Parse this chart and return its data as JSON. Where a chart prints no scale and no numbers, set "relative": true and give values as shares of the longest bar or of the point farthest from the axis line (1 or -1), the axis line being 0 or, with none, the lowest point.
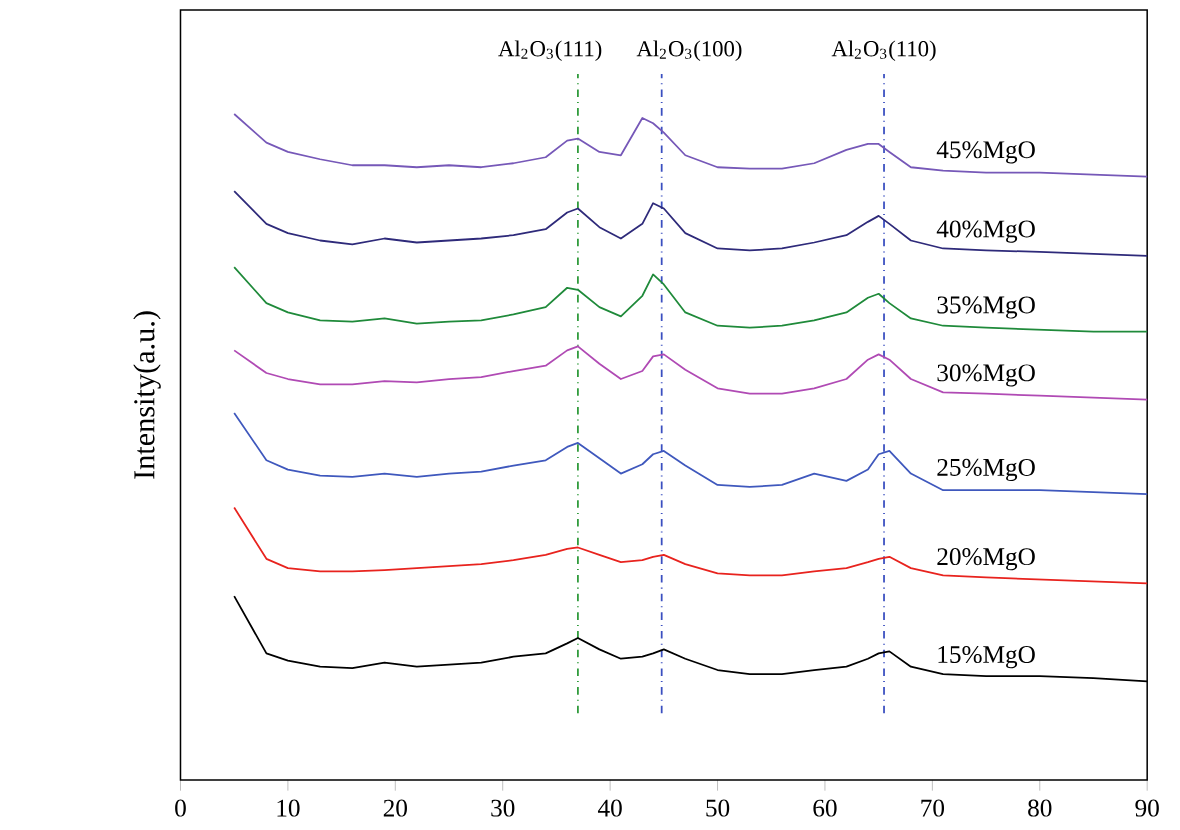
{
  "chart_data": {
    "type": "line",
    "ylabel": "Intensity(a.u.)",
    "relative": true,
    "marker": "none",
    "xlim": [
      0,
      90
    ],
    "xticks": [
      0,
      10,
      20,
      30,
      40,
      50,
      60,
      70,
      80,
      90
    ],
    "x": [
      5,
      8,
      10,
      13,
      16,
      19,
      22,
      25,
      28,
      31,
      34,
      36,
      37,
      39,
      41,
      43,
      44,
      45,
      47,
      50,
      53,
      56,
      59,
      62,
      64,
      65,
      66,
      68,
      71,
      75,
      80,
      85,
      90
    ],
    "series": [
      {
        "name": "15%MgO",
        "color": "#000000",
        "values": [
          0.276,
          0.19,
          0.179,
          0.17,
          0.168,
          0.176,
          0.17,
          0.173,
          0.176,
          0.185,
          0.19,
          0.205,
          0.213,
          0.196,
          0.182,
          0.185,
          0.19,
          0.196,
          0.182,
          0.165,
          0.159,
          0.159,
          0.165,
          0.17,
          0.182,
          0.19,
          0.193,
          0.17,
          0.159,
          0.156,
          0.156,
          0.153,
          0.148
        ]
      },
      {
        "name": "20%MgO",
        "color": "#e8231e",
        "values": [
          0.409,
          0.332,
          0.318,
          0.313,
          0.313,
          0.315,
          0.318,
          0.321,
          0.324,
          0.33,
          0.338,
          0.347,
          0.349,
          0.338,
          0.327,
          0.33,
          0.335,
          0.338,
          0.324,
          0.31,
          0.307,
          0.307,
          0.313,
          0.318,
          0.327,
          0.332,
          0.335,
          0.318,
          0.307,
          0.304,
          0.301,
          0.298,
          0.295
        ]
      },
      {
        "name": "25%MgO",
        "color": "#3f58bd",
        "values": [
          0.551,
          0.48,
          0.466,
          0.457,
          0.455,
          0.46,
          0.455,
          0.46,
          0.463,
          0.472,
          0.48,
          0.5,
          0.506,
          0.483,
          0.46,
          0.474,
          0.489,
          0.494,
          0.472,
          0.443,
          0.44,
          0.443,
          0.46,
          0.449,
          0.466,
          0.489,
          0.494,
          0.46,
          0.435,
          0.435,
          0.435,
          0.432,
          0.429
        ]
      },
      {
        "name": "30%MgO",
        "color": "#b04ab4",
        "values": [
          0.645,
          0.611,
          0.602,
          0.594,
          0.594,
          0.599,
          0.597,
          0.602,
          0.605,
          0.614,
          0.622,
          0.645,
          0.651,
          0.625,
          0.602,
          0.614,
          0.636,
          0.639,
          0.616,
          0.588,
          0.58,
          0.58,
          0.588,
          0.602,
          0.631,
          0.639,
          0.631,
          0.602,
          0.582,
          0.58,
          0.577,
          0.574,
          0.571
        ]
      },
      {
        "name": "35%MgO",
        "color": "#1f8a3a",
        "values": [
          0.77,
          0.716,
          0.702,
          0.69,
          0.688,
          0.693,
          0.685,
          0.688,
          0.69,
          0.699,
          0.71,
          0.739,
          0.736,
          0.71,
          0.696,
          0.727,
          0.759,
          0.744,
          0.702,
          0.682,
          0.679,
          0.682,
          0.69,
          0.702,
          0.724,
          0.73,
          0.716,
          0.693,
          0.682,
          0.679,
          0.676,
          0.673,
          0.673
        ]
      },
      {
        "name": "40%MgO",
        "color": "#2e2a7a",
        "values": [
          0.884,
          0.835,
          0.821,
          0.81,
          0.804,
          0.813,
          0.807,
          0.81,
          0.813,
          0.818,
          0.827,
          0.852,
          0.858,
          0.83,
          0.813,
          0.835,
          0.866,
          0.858,
          0.821,
          0.798,
          0.795,
          0.798,
          0.807,
          0.818,
          0.838,
          0.847,
          0.835,
          0.81,
          0.798,
          0.795,
          0.793,
          0.79,
          0.787
        ]
      },
      {
        "name": "45%MgO",
        "color": "#7658b8",
        "values": [
          1,
          0.957,
          0.943,
          0.932,
          0.923,
          0.923,
          0.92,
          0.923,
          0.92,
          0.926,
          0.935,
          0.96,
          0.963,
          0.943,
          0.938,
          0.994,
          0.986,
          0.972,
          0.938,
          0.92,
          0.918,
          0.918,
          0.926,
          0.946,
          0.955,
          0.955,
          0.943,
          0.92,
          0.915,
          0.912,
          0.912,
          0.909,
          0.906
        ]
      }
    ],
    "ref_lines": [
      {
        "axis": "x",
        "value": 37,
        "label": "Al$_{2}$O$_{3}$(111)",
        "color": "#2e9a3a",
        "line_style": "dashdot"
      },
      {
        "axis": "x",
        "value": 44.8,
        "label": "Al$_{2}$O$_{3}$(100)",
        "color": "#3a4fc0",
        "line_style": "dashdot"
      },
      {
        "axis": "x",
        "value": 65.5,
        "label": "Al$_{2}$O$_{3}$(110)",
        "color": "#3a4fc0",
        "line_style": "dashdot"
      }
    ]
  }
}
